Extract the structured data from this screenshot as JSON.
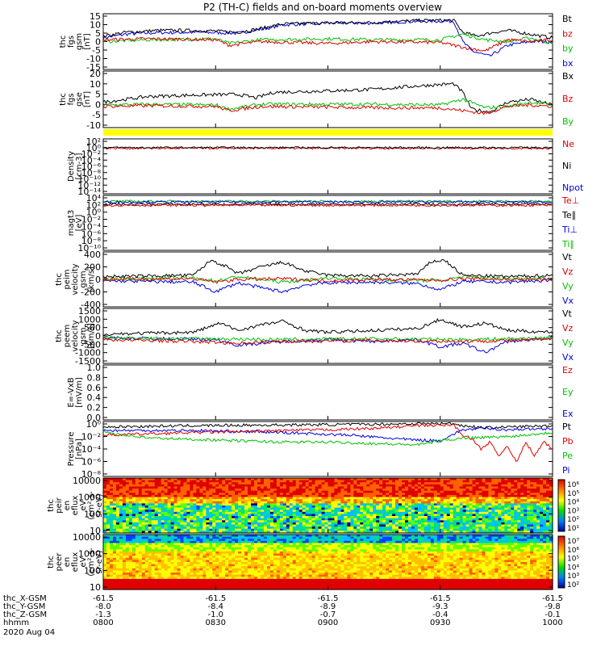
{
  "title": "P2 (TH-C) fields and on-board moments overview",
  "colors": {
    "black": "#000000",
    "red": "#e00000",
    "green": "#00c000",
    "blue": "#0000e0",
    "yellow": "#ffff00"
  },
  "x_axis": {
    "row_labels": [
      "thc_X-GSM",
      "thc_Y-GSM",
      "thc_Z-GSM",
      "hhmm"
    ],
    "date": "2020 Aug 04",
    "ticks": [
      {
        "x": "-61.5",
        "y": "-8.0",
        "z": "-1.3",
        "t": "0800"
      },
      {
        "x": "-61.5",
        "y": "-8.4",
        "z": "-1.0",
        "t": "0830"
      },
      {
        "x": "-61.5",
        "y": "-8.9",
        "z": "-0.7",
        "t": "0900"
      },
      {
        "x": "-61.5",
        "y": "-9.3",
        "z": "-0.4",
        "t": "0930"
      },
      {
        "x": "-61.5",
        "y": "-9.8",
        "z": "-0.1",
        "t": "1000"
      }
    ]
  },
  "chart_data": [
    {
      "type": "line",
      "panel": "fgs_gsm",
      "ylabel": [
        "thc",
        "fgs",
        "gsm",
        "[nT]"
      ],
      "ylim": [
        -15,
        15
      ],
      "yticks": [
        "15",
        "10",
        "5",
        "0",
        "-5",
        "-10",
        "-15"
      ],
      "legend": [
        {
          "text": "Bt",
          "color": "#000000"
        },
        {
          "text": "bz",
          "color": "#e00000"
        },
        {
          "text": "by",
          "color": "#00c000"
        },
        {
          "text": "bx",
          "color": "#0000e0"
        }
      ],
      "series": [
        {
          "name": "bx",
          "color": "#0000e0",
          "x": [
            0,
            0.05,
            0.12,
            0.22,
            0.3,
            0.36,
            0.4,
            0.5,
            0.6,
            0.7,
            0.78,
            0.8,
            0.82,
            0.86,
            0.9,
            0.95,
            1.0
          ],
          "y": [
            2,
            4,
            4.8,
            5,
            4.5,
            7,
            9,
            10,
            10,
            11,
            11,
            0,
            -5,
            -8,
            -2,
            0,
            0
          ]
        },
        {
          "name": "Bt",
          "color": "#000000",
          "x": [
            0,
            0.05,
            0.12,
            0.22,
            0.3,
            0.36,
            0.4,
            0.5,
            0.6,
            0.7,
            0.78,
            0.8,
            0.83,
            0.87,
            0.9,
            0.95,
            1.0
          ],
          "y": [
            3,
            5,
            6,
            6,
            5,
            7.5,
            9.5,
            10,
            10.2,
            11.3,
            11.5,
            5,
            3,
            5,
            6,
            4,
            2
          ]
        },
        {
          "name": "by",
          "color": "#00c000",
          "x": [
            0,
            0.1,
            0.25,
            0.28,
            0.35,
            0.5,
            0.6,
            0.75,
            0.8,
            0.85,
            0.9,
            0.95,
            1.0
          ],
          "y": [
            0,
            1,
            1.5,
            -1,
            1,
            1.5,
            1,
            1,
            4,
            1,
            0,
            2,
            -1
          ]
        },
        {
          "name": "bz",
          "color": "#e00000",
          "x": [
            0,
            0.1,
            0.25,
            0.28,
            0.35,
            0.5,
            0.6,
            0.75,
            0.8,
            0.85,
            0.9,
            0.95,
            1.0
          ],
          "y": [
            1,
            1.5,
            1,
            -2,
            0,
            -1,
            0,
            -0.5,
            -3,
            -5,
            1,
            0,
            1
          ]
        }
      ]
    },
    {
      "type": "line",
      "panel": "fgs_gse",
      "ylabel": [
        "thc",
        "fgs",
        "gse",
        "[nT]"
      ],
      "ylim": [
        -15,
        25
      ],
      "yticks": [
        "20",
        "10",
        "5",
        "0",
        "-5",
        "-10"
      ],
      "legend": [
        {
          "text": "Bx",
          "color": "#000000"
        },
        {
          "text": "Bz",
          "color": "#e00000"
        },
        {
          "text": "By",
          "color": "#00c000"
        }
      ],
      "series": [
        {
          "name": "Bx",
          "color": "#000000",
          "x": [
            0,
            0.1,
            0.2,
            0.3,
            0.34,
            0.38,
            0.5,
            0.6,
            0.7,
            0.78,
            0.8,
            0.82,
            0.86,
            0.9,
            0.95,
            1.0
          ],
          "y": [
            3,
            7,
            8,
            8.5,
            6,
            10,
            11,
            12,
            14.5,
            16,
            10,
            -2,
            -4,
            3,
            5,
            1
          ]
        },
        {
          "name": "By",
          "color": "#00c000",
          "x": [
            0,
            0.1,
            0.25,
            0.28,
            0.35,
            0.5,
            0.6,
            0.75,
            0.8,
            0.85,
            0.9,
            0.95,
            1.0
          ],
          "y": [
            1,
            1.5,
            1,
            -2,
            1.5,
            1.5,
            1.5,
            1,
            5,
            -1,
            0,
            3,
            1
          ]
        },
        {
          "name": "Bz",
          "color": "#e00000",
          "x": [
            0,
            0.1,
            0.25,
            0.28,
            0.35,
            0.5,
            0.6,
            0.75,
            0.8,
            0.85,
            0.9,
            0.95,
            1.0
          ],
          "y": [
            0,
            0.5,
            0,
            -3,
            0,
            -0.5,
            -1,
            -1,
            -3,
            -5,
            0,
            1,
            0
          ]
        }
      ]
    },
    {
      "type": "line",
      "panel": "density",
      "yscale": "log",
      "ylabel": [
        "Density",
        "[cm-3]"
      ],
      "ylim_exp": [
        -14,
        3
      ],
      "yticks": [
        "10²",
        "10⁰",
        "10⁻²",
        "10⁻⁴",
        "10⁻⁶",
        "10⁻⁸",
        "10⁻¹⁰",
        "10⁻¹²",
        "10⁻¹⁴"
      ],
      "legend": [
        {
          "text": "Ne",
          "color": "#e00000"
        },
        {
          "text": "Ni",
          "color": "#000000"
        },
        {
          "text": "Npot",
          "color": "#0000e0"
        }
      ],
      "series": [
        {
          "name": "Ne",
          "color": "#e00000",
          "exp": 0.1
        },
        {
          "name": "Ni",
          "color": "#000000",
          "exp": 0.3
        }
      ]
    },
    {
      "type": "line",
      "panel": "temperature",
      "yscale": "log",
      "ylabel": [
        "magt3",
        "[eV]"
      ],
      "ylim_exp": [
        -10,
        5
      ],
      "yticks": [
        "10⁴",
        "10²",
        "10⁰",
        "10⁻²",
        "10⁻⁴",
        "10⁻⁶",
        "10⁻⁸",
        "10⁻¹⁰"
      ],
      "legend": [
        {
          "text": "Te⊥",
          "color": "#e00000"
        },
        {
          "text": "Te∥",
          "color": "#000000"
        },
        {
          "text": "Ti⊥",
          "color": "#0000e0"
        },
        {
          "text": "Ti∥",
          "color": "#00c000"
        }
      ],
      "series": [
        {
          "name": "Ti∥",
          "color": "#00c000",
          "exp": 3.4
        },
        {
          "name": "Ti⊥",
          "color": "#0000e0",
          "exp": 3.2
        },
        {
          "name": "Te∥",
          "color": "#000000",
          "exp": 2.6
        },
        {
          "name": "Te⊥",
          "color": "#e00000",
          "exp": 2.3
        }
      ]
    },
    {
      "type": "line",
      "panel": "peim_velocity",
      "ylabel": [
        "thc",
        "peim",
        "velocity",
        "gsm",
        "[km/s]"
      ],
      "ylim": [
        -400,
        400
      ],
      "yticks": [
        "400",
        "200",
        "0",
        "-200",
        "-400"
      ],
      "legend": [
        {
          "text": "Vt",
          "color": "#000000"
        },
        {
          "text": "Vz",
          "color": "#e00000"
        },
        {
          "text": "Vy",
          "color": "#00c000"
        },
        {
          "text": "Vx",
          "color": "#0000e0"
        }
      ],
      "series": [
        {
          "name": "Vx",
          "color": "#0000e0",
          "x": [
            0,
            0.2,
            0.25,
            0.3,
            0.35,
            0.4,
            0.45,
            0.5,
            0.6,
            0.7,
            0.75,
            0.8,
            0.9,
            1.0
          ],
          "y": [
            -20,
            -40,
            -180,
            -50,
            -120,
            -180,
            -80,
            -50,
            -40,
            -60,
            -150,
            -30,
            -40,
            -10
          ]
        },
        {
          "name": "Vy",
          "color": "#00c000",
          "x": [
            0,
            0.2,
            0.25,
            0.3,
            0.4,
            0.5,
            0.6,
            0.75,
            0.8,
            0.9,
            1.0
          ],
          "y": [
            10,
            20,
            -20,
            40,
            -40,
            20,
            0,
            -20,
            40,
            10,
            20
          ]
        },
        {
          "name": "Vz",
          "color": "#e00000",
          "x": [
            0,
            0.2,
            0.25,
            0.3,
            0.4,
            0.5,
            0.6,
            0.75,
            0.8,
            0.9,
            1.0
          ],
          "y": [
            0,
            10,
            -40,
            0,
            10,
            -20,
            0,
            -10,
            10,
            0,
            0
          ]
        },
        {
          "name": "Vt",
          "color": "#000000",
          "x": [
            0,
            0.2,
            0.24,
            0.27,
            0.3,
            0.35,
            0.4,
            0.45,
            0.5,
            0.6,
            0.7,
            0.73,
            0.76,
            0.8,
            0.9,
            1.0
          ],
          "y": [
            40,
            60,
            280,
            200,
            80,
            180,
            250,
            120,
            60,
            50,
            80,
            260,
            280,
            60,
            40,
            60
          ]
        }
      ]
    },
    {
      "type": "line",
      "panel": "peem_velocity",
      "ylabel": [
        "thc",
        "peem",
        "velocity",
        "gsm",
        "[km/s]"
      ],
      "ylim": [
        -1500,
        1500
      ],
      "yticks": [
        "1500",
        "1000",
        "500",
        "0",
        "-500",
        "-1000",
        "-1500"
      ],
      "legend": [
        {
          "text": "Vt",
          "color": "#000000"
        },
        {
          "text": "Vz",
          "color": "#e00000"
        },
        {
          "text": "Vy",
          "color": "#00c000"
        },
        {
          "text": "Vx",
          "color": "#0000e0"
        }
      ],
      "series": [
        {
          "name": "Vx",
          "color": "#0000e0",
          "x": [
            0,
            0.25,
            0.3,
            0.4,
            0.5,
            0.6,
            0.7,
            0.75,
            0.8,
            0.85,
            0.9,
            1.0
          ],
          "y": [
            -100,
            -200,
            -500,
            -300,
            -200,
            -300,
            -200,
            -600,
            -400,
            -900,
            -300,
            -100
          ]
        },
        {
          "name": "Vy",
          "color": "#00c000",
          "x": [
            0,
            0.2,
            0.4,
            0.6,
            0.8,
            1.0
          ],
          "y": [
            -100,
            -150,
            -200,
            -150,
            -200,
            -100
          ]
        },
        {
          "name": "Vz",
          "color": "#e00000",
          "x": [
            0,
            0.2,
            0.3,
            0.4,
            0.6,
            0.8,
            1.0
          ],
          "y": [
            -200,
            -300,
            -400,
            -300,
            -250,
            -300,
            -200
          ]
        },
        {
          "name": "Vt",
          "color": "#000000",
          "x": [
            0,
            0.2,
            0.26,
            0.3,
            0.35,
            0.4,
            0.45,
            0.5,
            0.6,
            0.7,
            0.75,
            0.8,
            0.85,
            0.9,
            1.0
          ],
          "y": [
            100,
            200,
            700,
            300,
            600,
            800,
            300,
            200,
            300,
            400,
            900,
            500,
            700,
            300,
            200
          ]
        }
      ]
    },
    {
      "type": "line",
      "panel": "e_field",
      "ylabel": [
        "E=-VxB",
        "[mV/m]"
      ],
      "ylim": [
        0,
        1
      ],
      "yticks": [
        "1.0",
        "0.8",
        "0.6",
        "0.4",
        "0.2",
        "0.0"
      ],
      "legend": [
        {
          "text": "Ez",
          "color": "#e00000"
        },
        {
          "text": "Ey",
          "color": "#00c000"
        },
        {
          "text": "Ex",
          "color": "#0000e0"
        }
      ],
      "series": []
    },
    {
      "type": "line",
      "panel": "pressure",
      "yscale": "log",
      "ylabel": [
        "Pressure",
        "[nPa]"
      ],
      "ylim_exp": [
        -8,
        0
      ],
      "yticks": [
        "10⁰",
        "10⁻²",
        "10⁻⁴",
        "10⁻⁶",
        "10⁻⁸"
      ],
      "legend": [
        {
          "text": "Pt",
          "color": "#000000"
        },
        {
          "text": "Pb",
          "color": "#e00000"
        },
        {
          "text": "Pe",
          "color": "#00c000"
        },
        {
          "text": "Pi",
          "color": "#0000e0"
        }
      ],
      "series": [
        {
          "name": "Pt",
          "color": "#000000",
          "x": [
            0,
            0.2,
            0.4,
            0.6,
            0.7,
            0.78,
            0.8,
            0.85,
            0.9,
            1.0
          ],
          "y": [
            -0.8,
            -0.6,
            -0.5,
            -0.4,
            -0.3,
            -0.3,
            -0.6,
            -0.9,
            -0.8,
            -0.6
          ]
        },
        {
          "name": "Pi",
          "color": "#0000e0",
          "x": [
            0,
            0.2,
            0.4,
            0.55,
            0.65,
            0.7,
            0.75,
            0.8,
            0.85,
            0.9,
            1.0
          ],
          "y": [
            -1.3,
            -1.3,
            -1.6,
            -2,
            -2.5,
            -2.7,
            -2.8,
            -1.2,
            -1,
            -1.2,
            -1
          ]
        },
        {
          "name": "Pb",
          "color": "#e00000",
          "x": [
            0,
            0.1,
            0.2,
            0.3,
            0.4,
            0.5,
            0.6,
            0.7,
            0.78,
            0.8,
            0.82,
            0.84,
            0.86,
            0.88,
            0.9,
            0.92,
            0.94,
            0.96,
            0.98,
            1.0
          ],
          "y": [
            -2,
            -1.8,
            -1.6,
            -1.5,
            -1.3,
            -1.2,
            -1,
            -0.6,
            -0.5,
            -2,
            -2.5,
            -4,
            -3,
            -5,
            -3.5,
            -6,
            -3,
            -5,
            -3,
            -4
          ]
        },
        {
          "name": "Pe",
          "color": "#00c000",
          "x": [
            0,
            0.1,
            0.2,
            0.3,
            0.4,
            0.5,
            0.6,
            0.7,
            0.75,
            0.8,
            0.85,
            0.9,
            1.0
          ],
          "y": [
            -1.5,
            -2.4,
            -2.6,
            -2.8,
            -3,
            -3,
            -3.2,
            -3.4,
            -2.8,
            -2.4,
            -2.3,
            -2.2,
            -1.6
          ]
        }
      ]
    },
    {
      "type": "heatmap",
      "panel": "peir_eflux",
      "ylabel": [
        "thc",
        "peir",
        "en",
        "eflux",
        "eV",
        "(cm²-s-",
        "sr-eV)"
      ],
      "yticks": [
        "10000",
        "1000",
        "100",
        "10"
      ],
      "colorbar": {
        "label": "eV/(cm²-s-sr-eV)",
        "ticks": [
          "10⁶",
          "10⁵",
          "10⁴",
          "10³",
          "10²",
          "10¹"
        ]
      }
    },
    {
      "type": "heatmap",
      "panel": "peer_eflux",
      "ylabel": [
        "thc",
        "peer",
        "en",
        "eflux",
        "eV",
        "(cm²-s-",
        "sr-eV)"
      ],
      "yticks": [
        "10000",
        "1000",
        "100",
        "10"
      ],
      "colorbar": {
        "label": "[eV/(cm²-s-sr-eV) (All Qs)]",
        "ticks": [
          "10⁷",
          "10⁶",
          "10⁵",
          "10⁴",
          "10³",
          "10²"
        ]
      }
    }
  ]
}
